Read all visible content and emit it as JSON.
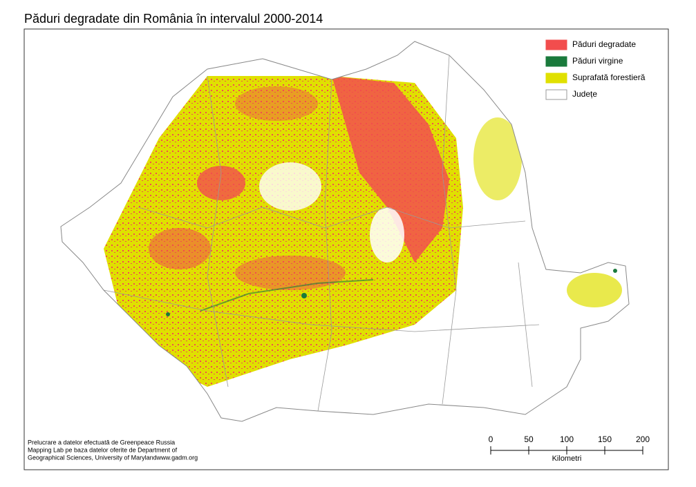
{
  "header": {
    "title": "Păduri degradate din România în intervalul 2000-2014"
  },
  "legend": [
    {
      "label": "Păduri degradate",
      "color": "#f24d4d"
    },
    {
      "label": "Păduri virgine",
      "color": "#1a7a3c"
    },
    {
      "label": "Suprafată forestieră",
      "color": "#e0e000"
    },
    {
      "label": "Județe",
      "color": "#ffffff"
    }
  ],
  "credits": [
    "Prelucrare a datelor efectuată de Greenpeace Russia",
    "Mapping Lab pe baza datelor oferite de Department of",
    "Geographical Sciences, University of Marylandwww.gadm.org"
  ],
  "scale": {
    "ticks": [
      0,
      50,
      100,
      150,
      200
    ],
    "unit": "Kilometri"
  }
}
